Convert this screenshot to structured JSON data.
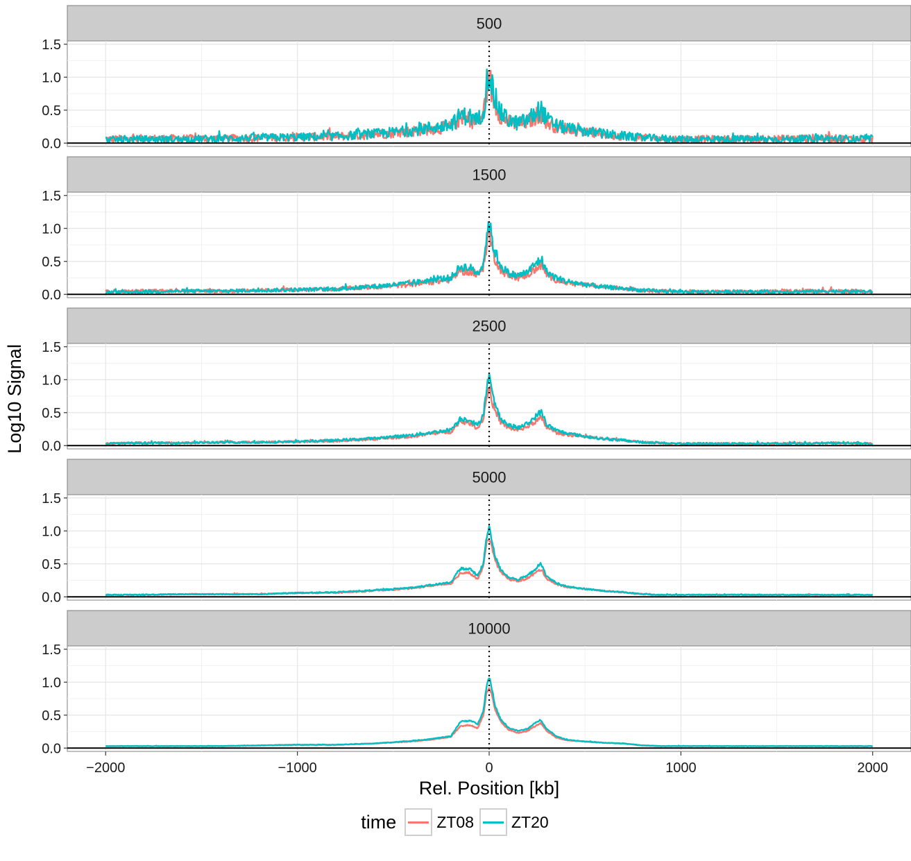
{
  "chart_data": {
    "type": "line",
    "title": "",
    "xlabel": "Rel. Position [kb]",
    "ylabel": "Log10 Signal",
    "xlim": [
      -2200,
      2200
    ],
    "ylim": [
      -0.05,
      1.55
    ],
    "x_ticks": [
      -2000,
      -1000,
      0,
      1000,
      2000
    ],
    "x_tick_labels": [
      "−2000",
      "−1000",
      "0",
      "1000",
      "2000"
    ],
    "y_ticks": [
      0.0,
      0.5,
      1.0,
      1.5
    ],
    "y_tick_labels": [
      "0.0",
      "0.5",
      "1.0",
      "1.5"
    ],
    "grid": true,
    "reference_lines": {
      "hline_y": 0,
      "vline_x": 0,
      "vline_style": "dotted"
    },
    "legend": {
      "title": "time",
      "position": "bottom"
    },
    "series": [
      {
        "name": "ZT08",
        "color": "#F8766D"
      },
      {
        "name": "ZT20",
        "color": "#00BFC4"
      }
    ],
    "profile_x": [
      -2000,
      -1800,
      -1600,
      -1400,
      -1200,
      -1000,
      -800,
      -600,
      -400,
      -300,
      -200,
      -150,
      -100,
      -60,
      -30,
      -15,
      0,
      15,
      30,
      60,
      100,
      150,
      200,
      250,
      270,
      300,
      350,
      400,
      500,
      600,
      700,
      800,
      900,
      1000,
      1200,
      1400,
      1600,
      1800,
      2000
    ],
    "panels": [
      {
        "strip": "500",
        "profiles": {
          "ZT08": [
            0.06,
            0.07,
            0.07,
            0.07,
            0.08,
            0.09,
            0.1,
            0.13,
            0.18,
            0.22,
            0.24,
            0.38,
            0.36,
            0.3,
            0.45,
            0.75,
            1.05,
            0.75,
            0.6,
            0.42,
            0.32,
            0.28,
            0.32,
            0.42,
            0.45,
            0.32,
            0.25,
            0.22,
            0.17,
            0.13,
            0.11,
            0.08,
            0.07,
            0.06,
            0.06,
            0.06,
            0.07,
            0.07,
            0.06
          ],
          "ZT20": [
            0.05,
            0.06,
            0.06,
            0.07,
            0.08,
            0.09,
            0.1,
            0.14,
            0.19,
            0.24,
            0.26,
            0.42,
            0.4,
            0.34,
            0.5,
            0.85,
            1.15,
            0.85,
            0.68,
            0.46,
            0.35,
            0.3,
            0.35,
            0.47,
            0.52,
            0.36,
            0.27,
            0.23,
            0.18,
            0.14,
            0.11,
            0.08,
            0.07,
            0.06,
            0.06,
            0.06,
            0.06,
            0.07,
            0.06
          ]
        },
        "noise": 0.04
      },
      {
        "strip": "1500",
        "profiles": {
          "ZT08": [
            0.04,
            0.05,
            0.05,
            0.05,
            0.06,
            0.07,
            0.08,
            0.11,
            0.15,
            0.19,
            0.22,
            0.36,
            0.34,
            0.28,
            0.42,
            0.72,
            0.95,
            0.7,
            0.55,
            0.38,
            0.28,
            0.25,
            0.3,
            0.4,
            0.45,
            0.3,
            0.22,
            0.18,
            0.14,
            0.11,
            0.09,
            0.06,
            0.05,
            0.04,
            0.04,
            0.04,
            0.05,
            0.05,
            0.04
          ],
          "ZT20": [
            0.03,
            0.04,
            0.05,
            0.05,
            0.06,
            0.07,
            0.08,
            0.12,
            0.17,
            0.22,
            0.25,
            0.42,
            0.4,
            0.32,
            0.48,
            0.85,
            1.1,
            0.82,
            0.65,
            0.44,
            0.32,
            0.28,
            0.34,
            0.48,
            0.55,
            0.34,
            0.25,
            0.2,
            0.15,
            0.11,
            0.09,
            0.06,
            0.05,
            0.04,
            0.04,
            0.04,
            0.04,
            0.05,
            0.04
          ]
        },
        "noise": 0.02
      },
      {
        "strip": "2500",
        "profiles": {
          "ZT08": [
            0.03,
            0.04,
            0.04,
            0.05,
            0.05,
            0.06,
            0.07,
            0.1,
            0.14,
            0.18,
            0.21,
            0.36,
            0.34,
            0.26,
            0.42,
            0.7,
            0.9,
            0.68,
            0.52,
            0.36,
            0.27,
            0.24,
            0.29,
            0.38,
            0.42,
            0.28,
            0.2,
            0.17,
            0.13,
            0.1,
            0.08,
            0.05,
            0.04,
            0.03,
            0.03,
            0.03,
            0.04,
            0.04,
            0.03
          ],
          "ZT20": [
            0.03,
            0.04,
            0.04,
            0.05,
            0.05,
            0.06,
            0.08,
            0.11,
            0.16,
            0.2,
            0.24,
            0.41,
            0.39,
            0.3,
            0.48,
            0.85,
            1.05,
            0.8,
            0.62,
            0.42,
            0.31,
            0.27,
            0.33,
            0.46,
            0.52,
            0.32,
            0.23,
            0.19,
            0.14,
            0.1,
            0.08,
            0.05,
            0.04,
            0.03,
            0.03,
            0.03,
            0.03,
            0.04,
            0.03
          ]
        },
        "noise": 0.012
      },
      {
        "strip": "5000",
        "profiles": {
          "ZT08": [
            0.03,
            0.03,
            0.04,
            0.04,
            0.04,
            0.06,
            0.06,
            0.09,
            0.13,
            0.17,
            0.2,
            0.36,
            0.36,
            0.27,
            0.45,
            0.8,
            0.9,
            0.75,
            0.55,
            0.38,
            0.27,
            0.24,
            0.28,
            0.38,
            0.42,
            0.28,
            0.19,
            0.15,
            0.12,
            0.09,
            0.07,
            0.04,
            0.03,
            0.03,
            0.03,
            0.03,
            0.03,
            0.03,
            0.03
          ],
          "ZT20": [
            0.03,
            0.03,
            0.04,
            0.04,
            0.04,
            0.06,
            0.07,
            0.1,
            0.14,
            0.18,
            0.22,
            0.43,
            0.42,
            0.32,
            0.5,
            0.9,
            1.05,
            0.85,
            0.62,
            0.42,
            0.3,
            0.26,
            0.32,
            0.45,
            0.5,
            0.31,
            0.21,
            0.16,
            0.12,
            0.09,
            0.07,
            0.04,
            0.03,
            0.03,
            0.03,
            0.03,
            0.03,
            0.03,
            0.03
          ]
        },
        "noise": 0.006
      },
      {
        "strip": "10000",
        "profiles": {
          "ZT08": [
            0.03,
            0.03,
            0.03,
            0.03,
            0.04,
            0.05,
            0.05,
            0.07,
            0.1,
            0.13,
            0.17,
            0.33,
            0.35,
            0.3,
            0.5,
            0.82,
            0.92,
            0.8,
            0.58,
            0.4,
            0.28,
            0.23,
            0.26,
            0.35,
            0.38,
            0.26,
            0.16,
            0.12,
            0.1,
            0.08,
            0.07,
            0.04,
            0.03,
            0.03,
            0.03,
            0.03,
            0.03,
            0.03,
            0.03
          ],
          "ZT20": [
            0.03,
            0.03,
            0.03,
            0.03,
            0.04,
            0.05,
            0.05,
            0.07,
            0.11,
            0.14,
            0.18,
            0.4,
            0.42,
            0.36,
            0.56,
            0.92,
            1.08,
            0.9,
            0.64,
            0.44,
            0.31,
            0.26,
            0.29,
            0.4,
            0.43,
            0.29,
            0.18,
            0.13,
            0.1,
            0.08,
            0.07,
            0.04,
            0.03,
            0.03,
            0.03,
            0.03,
            0.03,
            0.03,
            0.03
          ]
        },
        "noise": 0.003
      }
    ]
  }
}
